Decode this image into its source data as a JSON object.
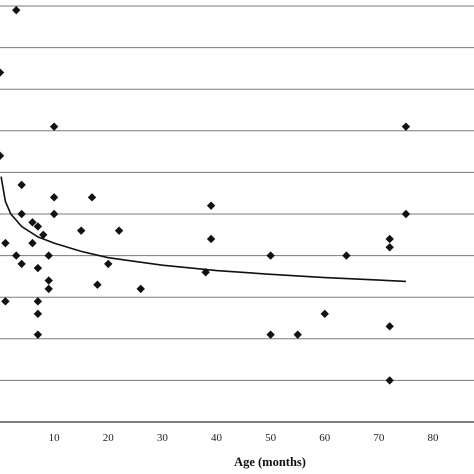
{
  "chart_data": {
    "type": "scatter",
    "title": "",
    "xlabel": "Age (months)",
    "ylabel": "",
    "xlim": [
      0,
      80
    ],
    "ylim": [
      0,
      10
    ],
    "x_ticks": [
      10,
      20,
      30,
      40,
      50,
      60,
      70,
      80
    ],
    "grid": "horizontal",
    "point_marker": "diamond",
    "colors": {
      "points": "#111111",
      "grid": "#7a7a7a",
      "trend": "#111111"
    },
    "points": [
      {
        "x": 3,
        "y": 9.9
      },
      {
        "x": 0,
        "y": 8.4
      },
      {
        "x": 10,
        "y": 7.1
      },
      {
        "x": 0,
        "y": 6.4
      },
      {
        "x": 4,
        "y": 5.7
      },
      {
        "x": 10,
        "y": 5.4
      },
      {
        "x": 17,
        "y": 5.4
      },
      {
        "x": 39,
        "y": 5.2
      },
      {
        "x": 75,
        "y": 7.1
      },
      {
        "x": 75,
        "y": 5.0
      },
      {
        "x": 4,
        "y": 5.0
      },
      {
        "x": 10,
        "y": 5.0
      },
      {
        "x": 6,
        "y": 4.8
      },
      {
        "x": 7,
        "y": 4.7
      },
      {
        "x": 15,
        "y": 4.6
      },
      {
        "x": 22,
        "y": 4.6
      },
      {
        "x": 8,
        "y": 4.5
      },
      {
        "x": 39,
        "y": 4.4
      },
      {
        "x": 72,
        "y": 4.4
      },
      {
        "x": 72,
        "y": 4.2
      },
      {
        "x": 1,
        "y": 4.3
      },
      {
        "x": 6,
        "y": 4.3
      },
      {
        "x": 3,
        "y": 4.0
      },
      {
        "x": 9,
        "y": 4.0
      },
      {
        "x": 4,
        "y": 3.8
      },
      {
        "x": 7,
        "y": 3.7
      },
      {
        "x": 20,
        "y": 3.8
      },
      {
        "x": 50,
        "y": 4.0
      },
      {
        "x": 64,
        "y": 4.0
      },
      {
        "x": 38,
        "y": 3.6
      },
      {
        "x": 9,
        "y": 3.4
      },
      {
        "x": 18,
        "y": 3.3
      },
      {
        "x": 9,
        "y": 3.2
      },
      {
        "x": 26,
        "y": 3.2
      },
      {
        "x": 1,
        "y": 2.9
      },
      {
        "x": 7,
        "y": 2.9
      },
      {
        "x": 7,
        "y": 2.6
      },
      {
        "x": 60,
        "y": 2.6
      },
      {
        "x": 72,
        "y": 2.3
      },
      {
        "x": 7,
        "y": 2.1
      },
      {
        "x": 50,
        "y": 2.1
      },
      {
        "x": 55,
        "y": 2.1
      },
      {
        "x": 72,
        "y": 1.0
      }
    ],
    "trend_line": [
      {
        "x": 0.2,
        "y": 5.9
      },
      {
        "x": 1,
        "y": 5.3
      },
      {
        "x": 2,
        "y": 5.0
      },
      {
        "x": 4,
        "y": 4.7
      },
      {
        "x": 7,
        "y": 4.45
      },
      {
        "x": 10,
        "y": 4.3
      },
      {
        "x": 15,
        "y": 4.1
      },
      {
        "x": 20,
        "y": 3.95
      },
      {
        "x": 30,
        "y": 3.77
      },
      {
        "x": 40,
        "y": 3.64
      },
      {
        "x": 50,
        "y": 3.55
      },
      {
        "x": 60,
        "y": 3.47
      },
      {
        "x": 70,
        "y": 3.41
      },
      {
        "x": 75,
        "y": 3.38
      }
    ]
  }
}
